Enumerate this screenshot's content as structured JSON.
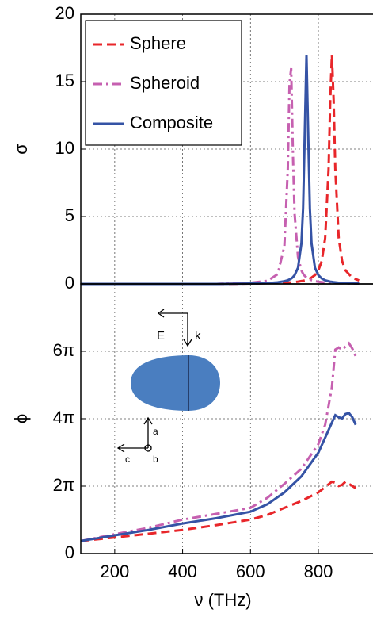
{
  "chart_data": [
    {
      "type": "line",
      "ylabel": "σ",
      "x": [
        100,
        300,
        500,
        600,
        650,
        680,
        700,
        710,
        715,
        720,
        725,
        730,
        740,
        750,
        755,
        760,
        765,
        770,
        775,
        780,
        790,
        800,
        810,
        820,
        830,
        835,
        840,
        845,
        850,
        860,
        870,
        880,
        900,
        920
      ],
      "xlim": [
        100,
        961
      ],
      "ylim": [
        0,
        20
      ],
      "yticks": [
        0,
        5,
        10,
        15,
        20
      ],
      "grid": true,
      "legend": "upper-left",
      "series": [
        {
          "name": "Sphere",
          "color": "#e8262a",
          "dash": "dashed",
          "values": [
            0,
            0,
            0,
            0.03,
            0.05,
            0.07,
            0.09,
            0.1,
            0.11,
            0.12,
            0.13,
            0.14,
            0.17,
            0.21,
            0.23,
            0.26,
            0.3,
            0.35,
            0.4,
            0.47,
            0.65,
            1.0,
            1.7,
            3.4,
            8.5,
            13.6,
            17,
            13.6,
            8.5,
            3.4,
            1.7,
            1.0,
            0.46,
            0.26
          ]
        },
        {
          "name": "Spheroid",
          "color": "#c660b0",
          "dash": "dashdot",
          "values": [
            0,
            0,
            0,
            0.08,
            0.23,
            0.72,
            2.8,
            8.5,
            14.9,
            16.0,
            9.6,
            5.2,
            2.0,
            1.0,
            0.76,
            0.59,
            0.48,
            0.39,
            0.33,
            0.28,
            0.21,
            0.16,
            0.13,
            0.1,
            0.09,
            0.08,
            0.07,
            0.07,
            0.06,
            0.05,
            0.05,
            0.04,
            0.03,
            0.03
          ]
        },
        {
          "name": "Composite",
          "color": "#3553a5",
          "dash": "solid",
          "values": [
            0,
            0,
            0,
            0.03,
            0.06,
            0.12,
            0.2,
            0.27,
            0.33,
            0.4,
            0.5,
            0.65,
            1.2,
            3.0,
            5.6,
            11.3,
            17,
            11.3,
            5.6,
            3.0,
            1.2,
            0.65,
            0.4,
            0.27,
            0.2,
            0.17,
            0.15,
            0.13,
            0.12,
            0.09,
            0.07,
            0.06,
            0.04,
            0.03
          ]
        }
      ]
    },
    {
      "type": "line",
      "ylabel": "ϕ",
      "xlabel": "ν (THz)",
      "x": [
        100,
        200,
        300,
        400,
        500,
        600,
        650,
        700,
        750,
        800,
        820,
        840,
        850,
        860,
        870,
        880,
        890,
        900,
        910
      ],
      "xlim": [
        100,
        961
      ],
      "xticks": [
        200,
        400,
        600,
        800
      ],
      "ylim": [
        0,
        25.13
      ],
      "yticks": [
        0,
        {
          "value": 6.2832,
          "label": "2π"
        },
        {
          "value": 12.5664,
          "label": "4π"
        },
        {
          "value": 18.8496,
          "label": "6π"
        }
      ],
      "grid": true,
      "annotations": [
        "E",
        "k",
        "a",
        "b",
        "c"
      ],
      "series": [
        {
          "name": "Sphere",
          "color": "#e8262a",
          "dash": "dashed",
          "values": [
            1.17,
            1.5,
            1.85,
            2.2,
            2.65,
            3.16,
            3.6,
            4.26,
            4.9,
            5.7,
            6.2,
            6.7,
            6.6,
            6.3,
            6.4,
            6.7,
            6.5,
            6.3,
            6.1
          ]
        },
        {
          "name": "Spheroid",
          "color": "#c660b0",
          "dash": "dashdot",
          "values": [
            1.17,
            1.8,
            2.4,
            3.16,
            3.7,
            4.26,
            5.2,
            6.5,
            7.9,
            10.2,
            12,
            15.5,
            19,
            19.2,
            19,
            19.3,
            19.6,
            19.1,
            18.4
          ]
        },
        {
          "name": "Composite",
          "color": "#3553a5",
          "dash": "solid",
          "values": [
            1.17,
            1.7,
            2.2,
            2.8,
            3.3,
            3.9,
            4.6,
            5.7,
            7.2,
            9.4,
            10.8,
            12.2,
            12.9,
            12.7,
            12.6,
            13.0,
            13.1,
            12.7,
            12.0
          ]
        }
      ]
    }
  ]
}
